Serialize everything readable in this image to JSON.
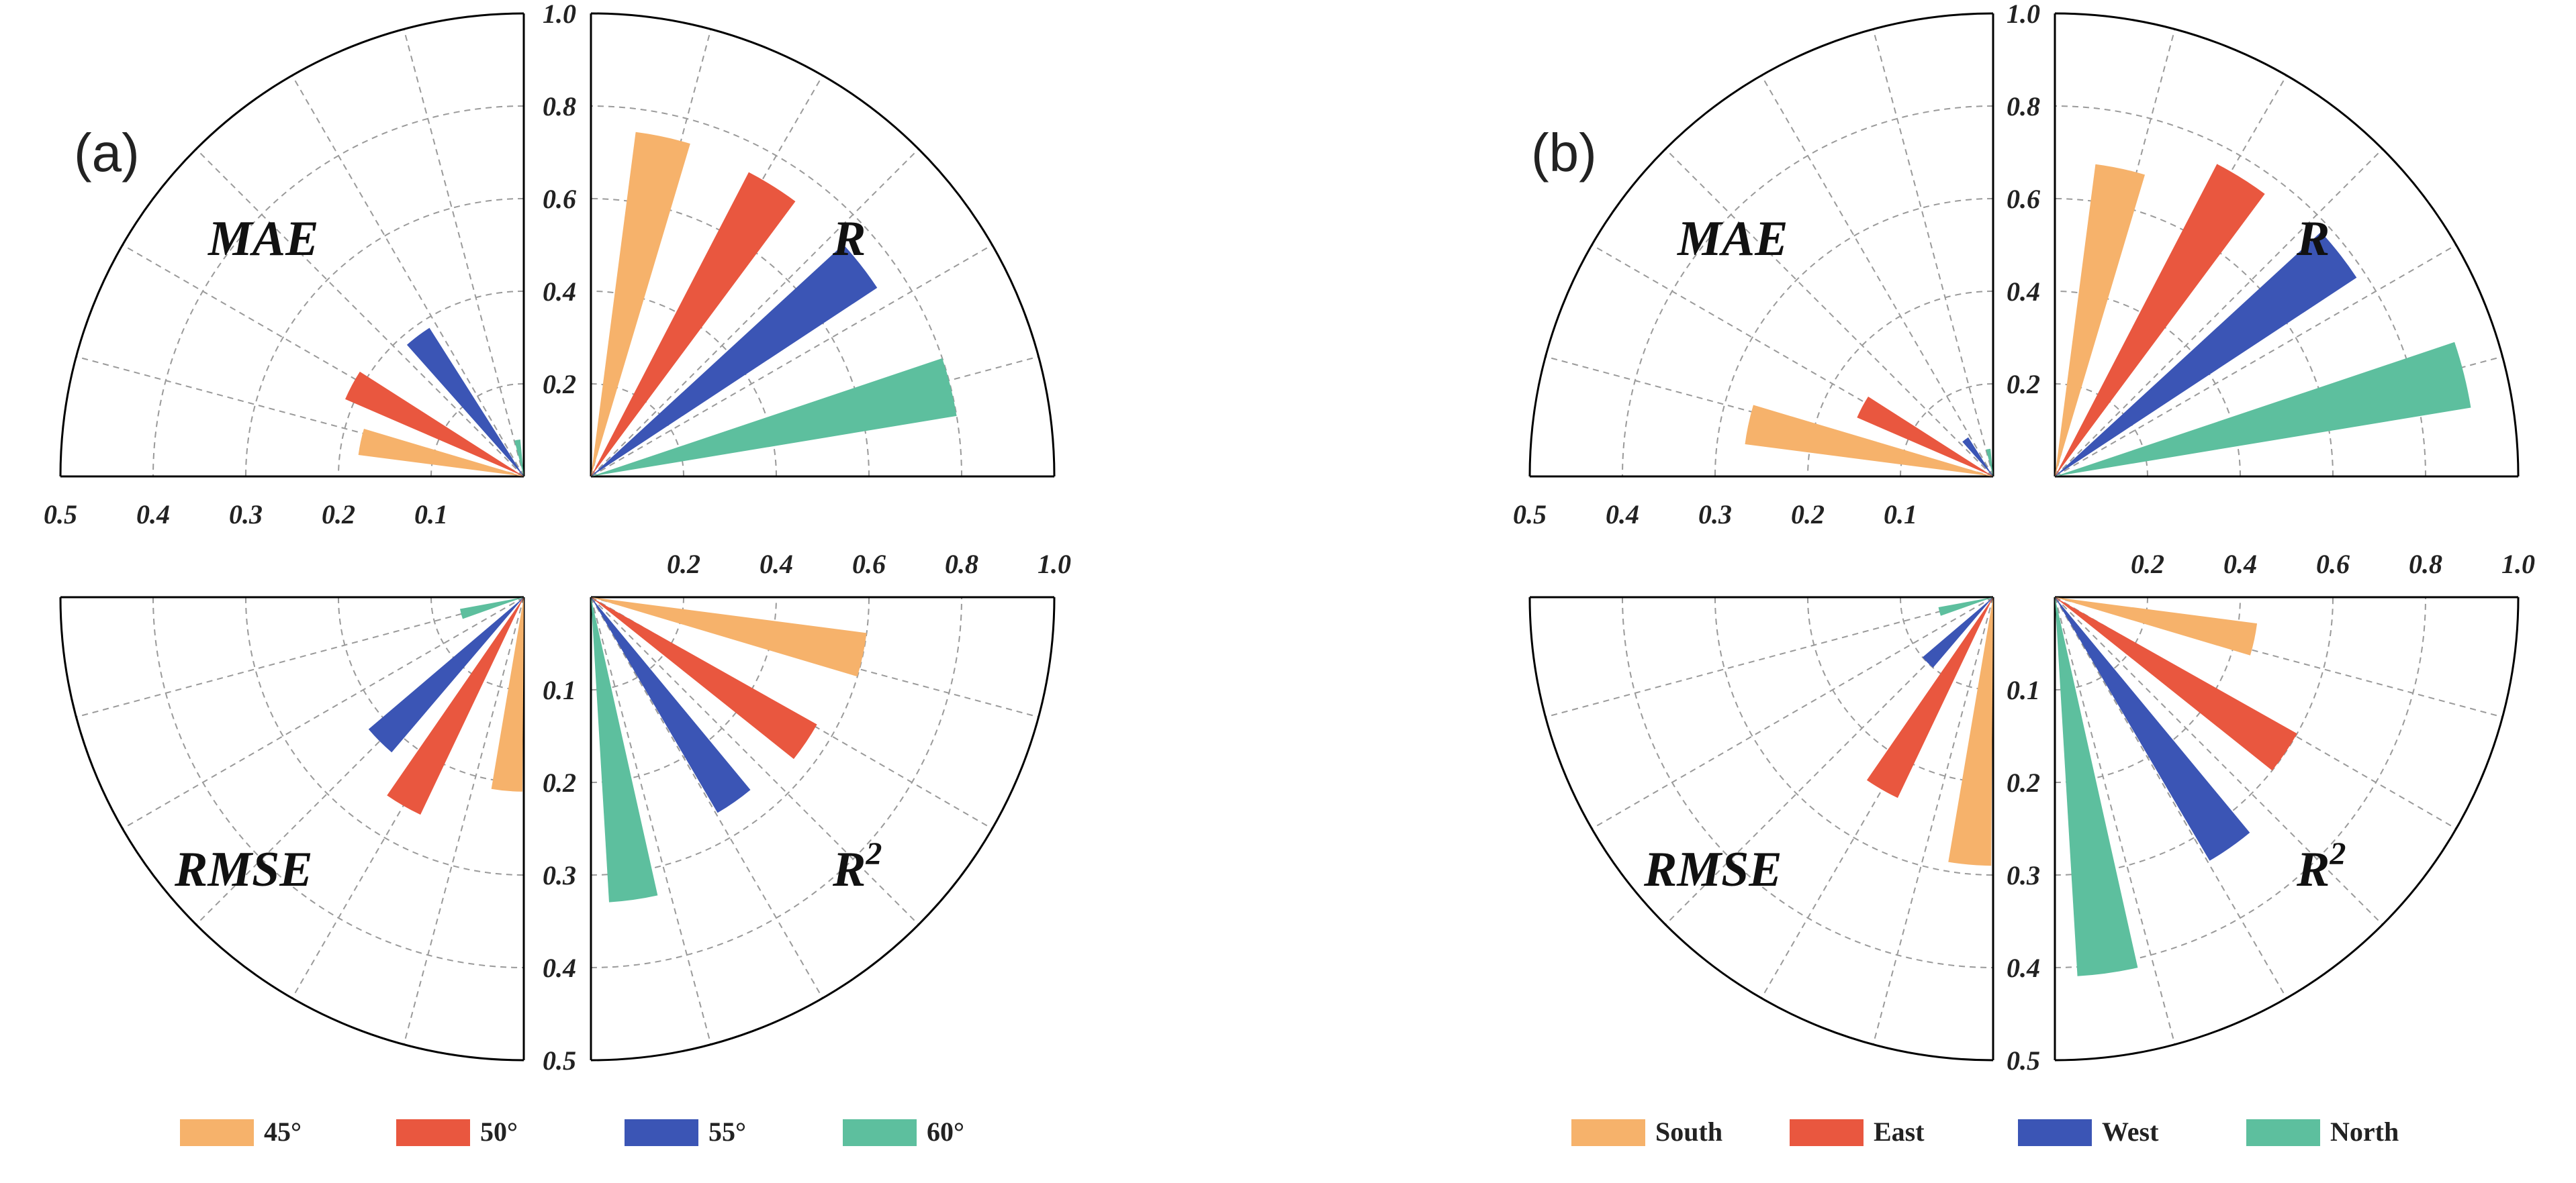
{
  "chart_data": [
    {
      "type": "radial-bar",
      "panel_label": "(a)",
      "legend": [
        {
          "name": "45°",
          "color": "#F6B26B"
        },
        {
          "name": "50°",
          "color": "#E9573F"
        },
        {
          "name": "55°",
          "color": "#3B55B5"
        },
        {
          "name": "60°",
          "color": "#5DBF9E"
        }
      ],
      "quadrants": [
        {
          "metric": "MAE",
          "label": "MAE",
          "label_sup": "",
          "position": "top-left",
          "range": [
            0,
            0.5
          ],
          "ticks": [
            "0.5",
            "0.4",
            "0.3",
            "0.2",
            "0.1"
          ],
          "values": {
            "45°": 0.18,
            "50°": 0.21,
            "55°": 0.19,
            "60°": 0.04
          }
        },
        {
          "metric": "R",
          "label": "R",
          "label_sup": "",
          "position": "top-right",
          "range": [
            0,
            1.0
          ],
          "ticks": [
            "1.0",
            "0.8",
            "0.6",
            "0.4",
            "0.2"
          ],
          "values": {
            "45°": 0.75,
            "50°": 0.74,
            "55°": 0.74,
            "60°": 0.8
          }
        },
        {
          "metric": "RMSE",
          "label": "RMSE",
          "label_sup": "",
          "position": "bottom-left",
          "range": [
            0,
            0.5
          ],
          "ticks": [
            "0.1",
            "0.2",
            "0.3",
            "0.4",
            "0.5"
          ],
          "values": {
            "45°": 0.21,
            "50°": 0.26,
            "55°": 0.22,
            "60°": 0.07
          }
        },
        {
          "metric": "R2",
          "label": "R",
          "label_sup": "2",
          "position": "bottom-right",
          "range": [
            0,
            0.5
          ],
          "ticks": [
            "0.2",
            "0.4",
            "0.6",
            "0.8",
            "1.0",
            "0.1",
            "0.2",
            "0.3",
            "0.4",
            "0.5"
          ],
          "values": {
            "45°": 0.3,
            "50°": 0.28,
            "55°": 0.27,
            "60°": 0.33
          }
        }
      ]
    },
    {
      "type": "radial-bar",
      "panel_label": "(b)",
      "legend": [
        {
          "name": "South",
          "color": "#F6B26B"
        },
        {
          "name": "East",
          "color": "#E9573F"
        },
        {
          "name": "West",
          "color": "#3B55B5"
        },
        {
          "name": "North",
          "color": "#5DBF9E"
        }
      ],
      "quadrants": [
        {
          "metric": "MAE",
          "label": "MAE",
          "label_sup": "",
          "position": "top-left",
          "range": [
            0,
            0.5
          ],
          "ticks": [
            "0.5",
            "0.4",
            "0.3",
            "0.2",
            "0.1"
          ],
          "values": {
            "South": 0.27,
            "East": 0.16,
            "West": 0.05,
            "North": 0.03
          }
        },
        {
          "metric": "R",
          "label": "R",
          "label_sup": "",
          "position": "top-right",
          "range": [
            0,
            1.0
          ],
          "ticks": [
            "1.0",
            "0.8",
            "0.6",
            "0.4",
            "0.2"
          ],
          "values": {
            "South": 0.68,
            "East": 0.76,
            "West": 0.78,
            "North": 0.91
          }
        },
        {
          "metric": "RMSE",
          "label": "RMSE",
          "label_sup": "",
          "position": "bottom-left",
          "range": [
            0,
            0.5
          ],
          "ticks": [
            "0.1",
            "0.2",
            "0.3",
            "0.4",
            "0.5"
          ],
          "values": {
            "South": 0.29,
            "East": 0.24,
            "West": 0.1,
            "North": 0.06
          }
        },
        {
          "metric": "R2",
          "label": "R",
          "label_sup": "2",
          "position": "bottom-right",
          "range": [
            0,
            0.5
          ],
          "ticks": [
            "0.2",
            "0.4",
            "0.6",
            "0.8",
            "1.0",
            "0.1",
            "0.2",
            "0.3",
            "0.4",
            "0.5"
          ],
          "values": {
            "South": 0.22,
            "East": 0.3,
            "West": 0.33,
            "North": 0.41
          }
        }
      ]
    }
  ]
}
